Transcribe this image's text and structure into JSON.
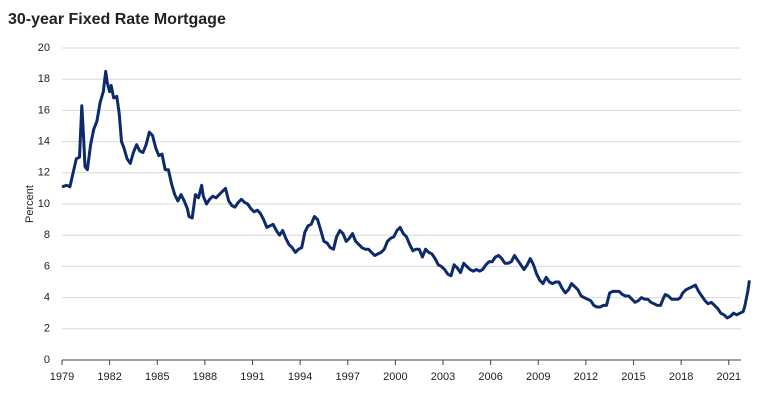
{
  "chart_data": {
    "type": "line",
    "title": "30-year Fixed Rate Mortgage",
    "y_label": "Percent",
    "x": [
      1979.0,
      1979.3,
      1979.5,
      1979.7,
      1979.9,
      1980.1,
      1980.25,
      1980.35,
      1980.45,
      1980.6,
      1980.8,
      1981.0,
      1981.2,
      1981.4,
      1981.6,
      1981.75,
      1981.85,
      1982.0,
      1982.1,
      1982.25,
      1982.45,
      1982.6,
      1982.75,
      1982.9,
      1983.1,
      1983.3,
      1983.5,
      1983.7,
      1983.9,
      1984.1,
      1984.3,
      1984.5,
      1984.7,
      1984.9,
      1985.1,
      1985.3,
      1985.5,
      1985.7,
      1985.9,
      1986.1,
      1986.3,
      1986.5,
      1986.7,
      1986.9,
      1987.0,
      1987.2,
      1987.4,
      1987.6,
      1987.8,
      1987.9,
      1988.1,
      1988.3,
      1988.5,
      1988.7,
      1988.9,
      1989.1,
      1989.3,
      1989.5,
      1989.7,
      1989.9,
      1990.1,
      1990.3,
      1990.5,
      1990.7,
      1990.9,
      1991.1,
      1991.3,
      1991.5,
      1991.7,
      1991.9,
      1992.1,
      1992.3,
      1992.5,
      1992.7,
      1992.9,
      1993.1,
      1993.3,
      1993.5,
      1993.7,
      1993.9,
      1994.1,
      1994.3,
      1994.5,
      1994.7,
      1994.9,
      1995.1,
      1995.3,
      1995.5,
      1995.7,
      1995.9,
      1996.1,
      1996.3,
      1996.5,
      1996.7,
      1996.9,
      1997.1,
      1997.3,
      1997.5,
      1997.7,
      1997.9,
      1998.1,
      1998.3,
      1998.5,
      1998.7,
      1998.9,
      1999.1,
      1999.3,
      1999.5,
      1999.7,
      1999.9,
      2000.1,
      2000.3,
      2000.5,
      2000.7,
      2000.9,
      2001.1,
      2001.3,
      2001.5,
      2001.7,
      2001.9,
      2002.1,
      2002.3,
      2002.5,
      2002.7,
      2002.9,
      2003.1,
      2003.3,
      2003.5,
      2003.7,
      2003.9,
      2004.1,
      2004.3,
      2004.5,
      2004.7,
      2004.9,
      2005.1,
      2005.3,
      2005.5,
      2005.7,
      2005.9,
      2006.1,
      2006.3,
      2006.5,
      2006.7,
      2006.9,
      2007.1,
      2007.3,
      2007.5,
      2007.7,
      2007.9,
      2008.1,
      2008.3,
      2008.5,
      2008.7,
      2008.9,
      2009.1,
      2009.3,
      2009.5,
      2009.7,
      2009.9,
      2010.1,
      2010.3,
      2010.5,
      2010.7,
      2010.9,
      2011.1,
      2011.3,
      2011.5,
      2011.7,
      2011.9,
      2012.1,
      2012.3,
      2012.5,
      2012.7,
      2012.9,
      2013.1,
      2013.3,
      2013.5,
      2013.7,
      2013.9,
      2014.1,
      2014.3,
      2014.5,
      2014.7,
      2014.9,
      2015.1,
      2015.3,
      2015.5,
      2015.7,
      2015.9,
      2016.1,
      2016.3,
      2016.5,
      2016.7,
      2016.9,
      2017.0,
      2017.2,
      2017.4,
      2017.6,
      2017.8,
      2017.95,
      2018.1,
      2018.3,
      2018.5,
      2018.7,
      2018.9,
      2019.1,
      2019.3,
      2019.5,
      2019.7,
      2019.9,
      2020.1,
      2020.3,
      2020.5,
      2020.7,
      2020.9,
      2021.1,
      2021.3,
      2021.5,
      2021.7,
      2021.9,
      2022.0,
      2022.1,
      2022.2,
      2022.3
    ],
    "series": [
      {
        "name": "30-year Fixed Rate Mortgage",
        "color": "#0d2b6b",
        "values": [
          11.1,
          11.2,
          11.1,
          12.0,
          12.9,
          13.0,
          16.3,
          14.5,
          12.4,
          12.2,
          13.8,
          14.8,
          15.3,
          16.5,
          17.2,
          18.5,
          17.8,
          17.2,
          17.6,
          16.8,
          16.9,
          15.8,
          14.0,
          13.6,
          12.9,
          12.6,
          13.3,
          13.8,
          13.4,
          13.3,
          13.8,
          14.6,
          14.4,
          13.6,
          13.1,
          13.2,
          12.2,
          12.2,
          11.3,
          10.6,
          10.2,
          10.6,
          10.2,
          9.7,
          9.2,
          9.1,
          10.6,
          10.4,
          11.2,
          10.5,
          10.0,
          10.3,
          10.5,
          10.4,
          10.6,
          10.8,
          11.0,
          10.2,
          9.9,
          9.8,
          10.1,
          10.3,
          10.1,
          10.0,
          9.7,
          9.5,
          9.6,
          9.4,
          9.0,
          8.5,
          8.6,
          8.7,
          8.3,
          8.0,
          8.3,
          7.8,
          7.4,
          7.2,
          6.9,
          7.1,
          7.2,
          8.2,
          8.6,
          8.7,
          9.2,
          9.0,
          8.3,
          7.6,
          7.5,
          7.2,
          7.1,
          7.9,
          8.3,
          8.1,
          7.6,
          7.8,
          8.1,
          7.6,
          7.4,
          7.2,
          7.1,
          7.1,
          6.9,
          6.7,
          6.8,
          6.9,
          7.1,
          7.6,
          7.8,
          7.9,
          8.3,
          8.5,
          8.1,
          7.9,
          7.4,
          7.0,
          7.1,
          7.1,
          6.6,
          7.1,
          6.9,
          6.8,
          6.5,
          6.1,
          6.0,
          5.8,
          5.5,
          5.4,
          6.1,
          5.9,
          5.6,
          6.2,
          6.0,
          5.8,
          5.7,
          5.8,
          5.7,
          5.8,
          6.1,
          6.3,
          6.3,
          6.6,
          6.7,
          6.5,
          6.2,
          6.2,
          6.3,
          6.7,
          6.4,
          6.1,
          5.8,
          6.1,
          6.5,
          6.1,
          5.5,
          5.1,
          4.9,
          5.3,
          5.0,
          4.9,
          5.0,
          5.0,
          4.6,
          4.3,
          4.5,
          4.9,
          4.7,
          4.5,
          4.1,
          4.0,
          3.9,
          3.8,
          3.5,
          3.4,
          3.4,
          3.5,
          3.5,
          4.3,
          4.4,
          4.4,
          4.4,
          4.2,
          4.1,
          4.1,
          3.9,
          3.7,
          3.8,
          4.0,
          3.9,
          3.9,
          3.7,
          3.6,
          3.5,
          3.5,
          4.0,
          4.2,
          4.1,
          3.9,
          3.9,
          3.9,
          4.0,
          4.3,
          4.5,
          4.6,
          4.7,
          4.8,
          4.4,
          4.1,
          3.8,
          3.6,
          3.7,
          3.5,
          3.3,
          3.0,
          2.9,
          2.7,
          2.8,
          3.0,
          2.9,
          3.0,
          3.1,
          3.4,
          3.9,
          4.4,
          5.1
        ]
      }
    ],
    "xlim": [
      1979,
      2022.4
    ],
    "xticks": [
      1979,
      1982,
      1985,
      1988,
      1991,
      1994,
      1997,
      2000,
      2003,
      2006,
      2009,
      2012,
      2015,
      2018,
      2021
    ],
    "ylim": [
      0,
      20
    ],
    "yticks": [
      0,
      2,
      4,
      6,
      8,
      10,
      12,
      14,
      16,
      18,
      20
    ],
    "grid": true
  }
}
